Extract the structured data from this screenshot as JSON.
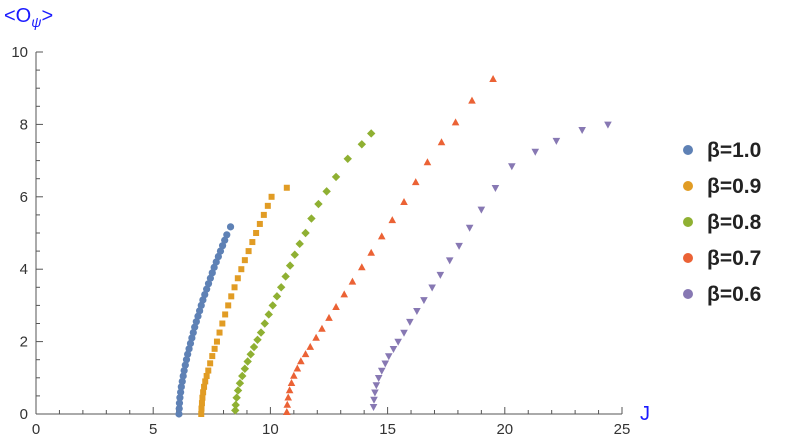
{
  "chart_data": {
    "type": "scatter",
    "xlabel": "J",
    "ylabel": "<O_ψ>",
    "ylabel_main": "<O",
    "ylabel_sub": "ψ",
    "ylabel_end": ">",
    "xlim": [
      0,
      25
    ],
    "ylim": [
      0,
      10
    ],
    "xticks": [
      0,
      5,
      10,
      15,
      20,
      25
    ],
    "yticks": [
      0,
      2,
      4,
      6,
      8,
      10
    ],
    "grid": false,
    "legend_position": "right",
    "series": [
      {
        "name": "β=1.0",
        "color": "#5e81b5",
        "marker": "circle",
        "points": [
          [
            6.1,
            0.0
          ],
          [
            6.11,
            0.15
          ],
          [
            6.12,
            0.3
          ],
          [
            6.14,
            0.45
          ],
          [
            6.17,
            0.6
          ],
          [
            6.2,
            0.75
          ],
          [
            6.24,
            0.9
          ],
          [
            6.28,
            1.05
          ],
          [
            6.32,
            1.2
          ],
          [
            6.37,
            1.35
          ],
          [
            6.42,
            1.5
          ],
          [
            6.47,
            1.65
          ],
          [
            6.53,
            1.8
          ],
          [
            6.59,
            1.95
          ],
          [
            6.65,
            2.1
          ],
          [
            6.71,
            2.25
          ],
          [
            6.77,
            2.4
          ],
          [
            6.84,
            2.55
          ],
          [
            6.91,
            2.7
          ],
          [
            6.98,
            2.85
          ],
          [
            7.05,
            3.0
          ],
          [
            7.12,
            3.15
          ],
          [
            7.2,
            3.3
          ],
          [
            7.28,
            3.45
          ],
          [
            7.36,
            3.6
          ],
          [
            7.44,
            3.75
          ],
          [
            7.52,
            3.9
          ],
          [
            7.6,
            4.05
          ],
          [
            7.69,
            4.2
          ],
          [
            7.78,
            4.35
          ],
          [
            7.87,
            4.5
          ],
          [
            7.96,
            4.65
          ],
          [
            8.05,
            4.8
          ],
          [
            8.14,
            4.95
          ],
          [
            8.3,
            5.17
          ]
        ]
      },
      {
        "name": "β=0.9",
        "color": "#e19c24",
        "marker": "square",
        "points": [
          [
            7.05,
            0.0
          ],
          [
            7.06,
            0.15
          ],
          [
            7.08,
            0.3
          ],
          [
            7.1,
            0.45
          ],
          [
            7.13,
            0.6
          ],
          [
            7.17,
            0.75
          ],
          [
            7.22,
            0.9
          ],
          [
            7.28,
            1.05
          ],
          [
            7.35,
            1.2
          ],
          [
            7.43,
            1.4
          ],
          [
            7.52,
            1.6
          ],
          [
            7.62,
            1.8
          ],
          [
            7.72,
            2.0
          ],
          [
            7.83,
            2.25
          ],
          [
            7.95,
            2.5
          ],
          [
            8.07,
            2.75
          ],
          [
            8.2,
            3.0
          ],
          [
            8.33,
            3.25
          ],
          [
            8.47,
            3.5
          ],
          [
            8.61,
            3.75
          ],
          [
            8.76,
            4.0
          ],
          [
            8.91,
            4.25
          ],
          [
            9.07,
            4.5
          ],
          [
            9.23,
            4.75
          ],
          [
            9.39,
            5.0
          ],
          [
            9.55,
            5.25
          ],
          [
            9.72,
            5.5
          ],
          [
            9.89,
            5.75
          ],
          [
            10.05,
            6.0
          ],
          [
            10.7,
            6.25
          ]
        ]
      },
      {
        "name": "β=0.8",
        "color": "#8fb032",
        "marker": "diamond",
        "points": [
          [
            8.5,
            0.1
          ],
          [
            8.52,
            0.25
          ],
          [
            8.56,
            0.45
          ],
          [
            8.62,
            0.65
          ],
          [
            8.7,
            0.85
          ],
          [
            8.8,
            1.05
          ],
          [
            8.91,
            1.25
          ],
          [
            9.03,
            1.45
          ],
          [
            9.16,
            1.65
          ],
          [
            9.3,
            1.85
          ],
          [
            9.45,
            2.05
          ],
          [
            9.6,
            2.25
          ],
          [
            9.76,
            2.5
          ],
          [
            9.93,
            2.75
          ],
          [
            10.1,
            3.0
          ],
          [
            10.28,
            3.25
          ],
          [
            10.46,
            3.5
          ],
          [
            10.65,
            3.8
          ],
          [
            10.84,
            4.1
          ],
          [
            11.04,
            4.4
          ],
          [
            11.25,
            4.7
          ],
          [
            11.5,
            5.0
          ],
          [
            11.75,
            5.4
          ],
          [
            12.05,
            5.8
          ],
          [
            12.4,
            6.15
          ],
          [
            12.8,
            6.55
          ],
          [
            13.3,
            7.05
          ],
          [
            13.9,
            7.45
          ],
          [
            14.3,
            7.75
          ]
        ]
      },
      {
        "name": "β=0.7",
        "color": "#eb6235",
        "marker": "triangle-up",
        "points": [
          [
            10.7,
            0.05
          ],
          [
            10.72,
            0.25
          ],
          [
            10.76,
            0.45
          ],
          [
            10.82,
            0.65
          ],
          [
            10.9,
            0.85
          ],
          [
            11.0,
            1.05
          ],
          [
            11.15,
            1.25
          ],
          [
            11.3,
            1.45
          ],
          [
            11.5,
            1.65
          ],
          [
            11.7,
            1.85
          ],
          [
            11.95,
            2.1
          ],
          [
            12.2,
            2.35
          ],
          [
            12.5,
            2.65
          ],
          [
            12.8,
            2.95
          ],
          [
            13.15,
            3.3
          ],
          [
            13.5,
            3.65
          ],
          [
            13.9,
            4.05
          ],
          [
            14.3,
            4.45
          ],
          [
            14.75,
            4.9
          ],
          [
            15.2,
            5.35
          ],
          [
            15.7,
            5.85
          ],
          [
            16.2,
            6.4
          ],
          [
            16.7,
            6.95
          ],
          [
            17.3,
            7.5
          ],
          [
            17.9,
            8.05
          ],
          [
            18.6,
            8.65
          ],
          [
            19.5,
            9.25
          ]
        ]
      },
      {
        "name": "β=0.6",
        "color": "#8778b3",
        "marker": "triangle-down",
        "points": [
          [
            14.4,
            0.2
          ],
          [
            14.42,
            0.4
          ],
          [
            14.46,
            0.6
          ],
          [
            14.52,
            0.8
          ],
          [
            14.62,
            1.0
          ],
          [
            14.75,
            1.2
          ],
          [
            14.9,
            1.4
          ],
          [
            15.05,
            1.6
          ],
          [
            15.25,
            1.8
          ],
          [
            15.45,
            2.0
          ],
          [
            15.7,
            2.25
          ],
          [
            15.95,
            2.55
          ],
          [
            16.25,
            2.85
          ],
          [
            16.55,
            3.15
          ],
          [
            16.9,
            3.5
          ],
          [
            17.25,
            3.85
          ],
          [
            17.65,
            4.25
          ],
          [
            18.05,
            4.65
          ],
          [
            18.5,
            5.15
          ],
          [
            19.0,
            5.65
          ],
          [
            19.6,
            6.25
          ],
          [
            20.3,
            6.85
          ],
          [
            21.3,
            7.25
          ],
          [
            22.2,
            7.55
          ],
          [
            23.3,
            7.85
          ],
          [
            24.4,
            8.0
          ]
        ]
      }
    ]
  }
}
